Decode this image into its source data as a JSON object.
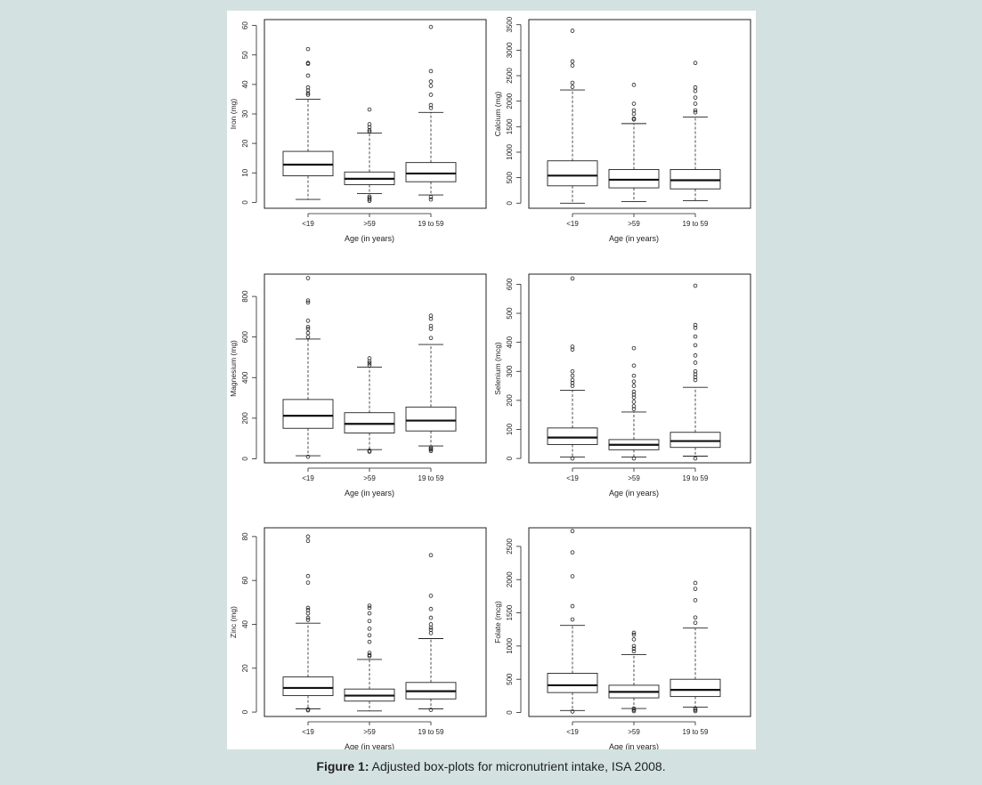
{
  "caption": {
    "label": "Figure 1:",
    "text": " Adjusted box-plots for micronutrient intake, ISA 2008."
  },
  "chart_data": [
    {
      "type": "box",
      "ylabel": "Iron (mg)",
      "xlabel": "Age (in years)",
      "categories": [
        "<19",
        ">59",
        "19 to 59"
      ],
      "yticks": [
        0,
        10,
        20,
        30,
        40,
        50,
        60
      ],
      "ylim": [
        -2,
        62
      ],
      "boxes": [
        {
          "whisker_low": 1,
          "q1": 9,
          "median": 12.8,
          "q3": 17.3,
          "whisker_high": 35,
          "outliers": [
            36.5,
            37,
            38,
            39,
            43,
            47,
            47.3,
            52
          ]
        },
        {
          "whisker_low": 3,
          "q1": 6,
          "median": 8,
          "q3": 10.3,
          "whisker_high": 23.5,
          "outliers": [
            0.5,
            1,
            1.5,
            2,
            24,
            24.5,
            25.5,
            26.5,
            31.5
          ]
        },
        {
          "whisker_low": 2.5,
          "q1": 7,
          "median": 9.8,
          "q3": 13.5,
          "whisker_high": 30.5,
          "outliers": [
            1,
            1.8,
            32,
            33,
            36.5,
            39.5,
            41,
            44.5,
            59.5
          ]
        }
      ]
    },
    {
      "type": "box",
      "ylabel": "Calcium (mg)",
      "xlabel": "Age (in years)",
      "categories": [
        "<19",
        ">59",
        "19 to 59"
      ],
      "yticks": [
        0,
        500,
        1000,
        1500,
        2000,
        2500,
        3000,
        3500
      ],
      "ylim": [
        -100,
        3600
      ],
      "boxes": [
        {
          "whisker_low": 0,
          "q1": 340,
          "median": 540,
          "q3": 830,
          "whisker_high": 2220,
          "outliers": [
            2280,
            2360,
            2700,
            2780,
            3380
          ]
        },
        {
          "whisker_low": 30,
          "q1": 300,
          "median": 460,
          "q3": 660,
          "whisker_high": 1560,
          "outliers": [
            1640,
            1660,
            1750,
            1820,
            1950,
            2320
          ]
        },
        {
          "whisker_low": 50,
          "q1": 280,
          "median": 450,
          "q3": 660,
          "whisker_high": 1690,
          "outliers": [
            1780,
            1820,
            1950,
            2070,
            2200,
            2270,
            2750
          ]
        }
      ]
    },
    {
      "type": "box",
      "ylabel": "Magnesium (mg)",
      "xlabel": "Age (in years)",
      "categories": [
        "<19",
        ">59",
        "19 to 59"
      ],
      "yticks": [
        0,
        200,
        400,
        600,
        800
      ],
      "ylim": [
        -20,
        910
      ],
      "boxes": [
        {
          "whisker_low": 15,
          "q1": 150,
          "median": 212,
          "q3": 292,
          "whisker_high": 590,
          "outliers": [
            10,
            600,
            620,
            640,
            650,
            680,
            770,
            780,
            890
          ]
        },
        {
          "whisker_low": 45,
          "q1": 127,
          "median": 172,
          "q3": 227,
          "whisker_high": 452,
          "outliers": [
            35,
            40,
            460,
            470,
            480,
            495
          ]
        },
        {
          "whisker_low": 63,
          "q1": 137,
          "median": 188,
          "q3": 255,
          "whisker_high": 563,
          "outliers": [
            38,
            45,
            50,
            55,
            595,
            640,
            655,
            690,
            705
          ]
        }
      ]
    },
    {
      "type": "box",
      "ylabel": "Selenium (mcg)",
      "xlabel": "Age (in years)",
      "categories": [
        "<19",
        ">59",
        "19 to 59"
      ],
      "yticks": [
        0,
        100,
        200,
        300,
        400,
        500,
        600
      ],
      "ylim": [
        -15,
        635
      ],
      "boxes": [
        {
          "whisker_low": 5,
          "q1": 48,
          "median": 72,
          "q3": 105,
          "whisker_high": 235,
          "outliers": [
            0,
            250,
            260,
            270,
            285,
            300,
            375,
            385,
            620
          ]
        },
        {
          "whisker_low": 5,
          "q1": 30,
          "median": 47,
          "q3": 65,
          "whisker_high": 160,
          "outliers": [
            0,
            170,
            180,
            195,
            210,
            220,
            230,
            250,
            265,
            285,
            320,
            380
          ]
        },
        {
          "whisker_low": 8,
          "q1": 38,
          "median": 60,
          "q3": 90,
          "whisker_high": 245,
          "outliers": [
            0,
            270,
            280,
            290,
            300,
            330,
            355,
            390,
            420,
            450,
            460,
            595
          ]
        }
      ]
    },
    {
      "type": "box",
      "ylabel": "Zinc (mg)",
      "xlabel": "Age (in years)",
      "categories": [
        "<19",
        ">59",
        "19 to 59"
      ],
      "yticks": [
        0,
        20,
        40,
        60,
        80
      ],
      "ylim": [
        -2,
        84
      ],
      "boxes": [
        {
          "whisker_low": 1.5,
          "q1": 7.5,
          "median": 11,
          "q3": 16,
          "whisker_high": 40.5,
          "outliers": [
            0.8,
            1.2,
            42,
            43,
            45,
            46.5,
            47.5,
            59,
            62,
            78,
            80
          ]
        },
        {
          "whisker_low": 0.5,
          "q1": 5,
          "median": 7.5,
          "q3": 10.5,
          "whisker_high": 24,
          "outliers": [
            25.5,
            26,
            27,
            32,
            35,
            38,
            41.5,
            45,
            47.5,
            48.5
          ]
        },
        {
          "whisker_low": 1.5,
          "q1": 6,
          "median": 9.5,
          "q3": 13.5,
          "whisker_high": 33.5,
          "outliers": [
            1,
            36,
            37.5,
            38.5,
            40,
            43,
            47,
            53,
            71.5
          ]
        }
      ]
    },
    {
      "type": "box",
      "ylabel": "Folate (mcg)",
      "xlabel": "Age (in years)",
      "categories": [
        "<19",
        ">59",
        "19 to 59"
      ],
      "yticks": [
        0,
        500,
        1000,
        1500,
        2000,
        2500
      ],
      "ylim": [
        -60,
        2780
      ],
      "boxes": [
        {
          "whisker_low": 30,
          "q1": 300,
          "median": 410,
          "q3": 590,
          "whisker_high": 1310,
          "outliers": [
            15,
            1400,
            1600,
            2050,
            2410,
            2730
          ]
        },
        {
          "whisker_low": 60,
          "q1": 220,
          "median": 310,
          "q3": 410,
          "whisker_high": 870,
          "outliers": [
            20,
            40,
            60,
            920,
            960,
            1000,
            1100,
            1170,
            1200
          ]
        },
        {
          "whisker_low": 80,
          "q1": 240,
          "median": 340,
          "q3": 500,
          "whisker_high": 1270,
          "outliers": [
            20,
            40,
            60,
            1350,
            1430,
            1690,
            1860,
            1950
          ]
        }
      ]
    }
  ]
}
